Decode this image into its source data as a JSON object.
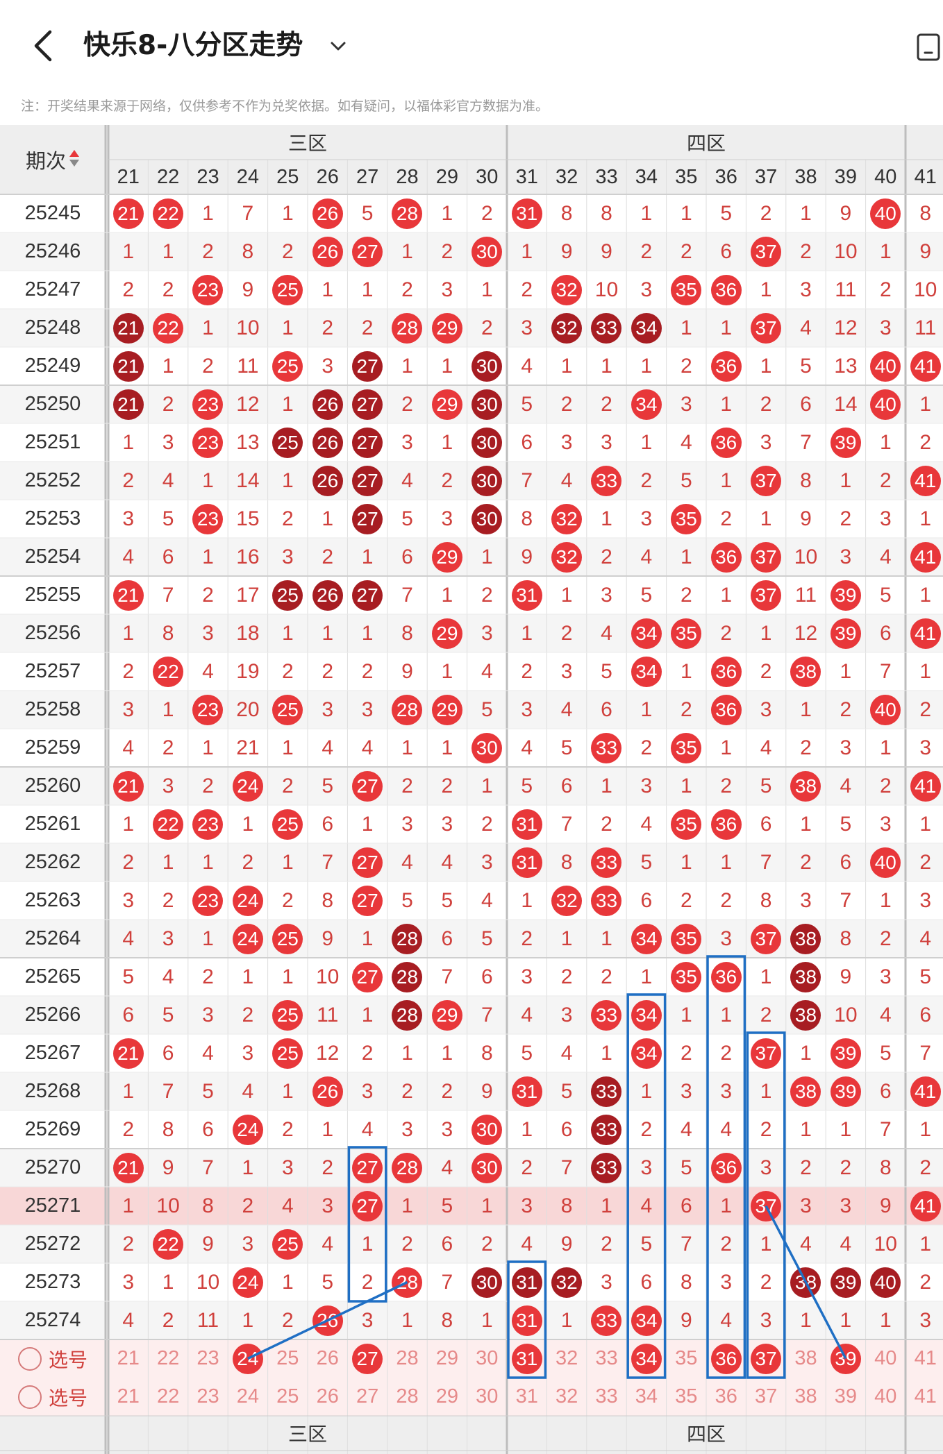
{
  "header": {
    "title": "快乐8-八分区走势",
    "back_icon": "chevron-left-icon",
    "caret_icon": "chevron-down-icon",
    "right_icon": "phone-icon"
  },
  "disclaimer": "注：开奖结果来源于网络，仅供参考不作为兑奖依据。如有疑问，以福体彩官方数据为准。",
  "table": {
    "period_header": "期次",
    "sort_icon": "sort-icon",
    "zones": [
      {
        "label": "三区"
      },
      {
        "label": "四区"
      }
    ],
    "columns": [
      "21",
      "22",
      "23",
      "24",
      "25",
      "26",
      "27",
      "28",
      "29",
      "30",
      "31",
      "32",
      "33",
      "34",
      "35",
      "36",
      "37",
      "38",
      "39",
      "40",
      "41"
    ],
    "rows": [
      {
        "period": "25245",
        "cells": [
          "B21",
          "B22",
          "1",
          "7",
          "1",
          "B26",
          "5",
          "B28",
          "1",
          "2",
          "B31",
          "8",
          "8",
          "1",
          "1",
          "5",
          "2",
          "1",
          "9",
          "B40",
          "8"
        ]
      },
      {
        "period": "25246",
        "cells": [
          "1",
          "1",
          "2",
          "8",
          "2",
          "B26",
          "B27",
          "1",
          "2",
          "B30",
          "1",
          "9",
          "9",
          "2",
          "2",
          "6",
          "B37",
          "2",
          "10",
          "1",
          "9"
        ]
      },
      {
        "period": "25247",
        "cells": [
          "2",
          "2",
          "B23",
          "9",
          "B25",
          "1",
          "1",
          "2",
          "3",
          "1",
          "2",
          "B32",
          "10",
          "3",
          "B35",
          "B36",
          "1",
          "3",
          "11",
          "2",
          "10"
        ]
      },
      {
        "period": "25248",
        "cells": [
          "D21",
          "B22",
          "1",
          "10",
          "1",
          "2",
          "2",
          "B28",
          "B29",
          "2",
          "3",
          "D32",
          "D33",
          "D34",
          "1",
          "1",
          "B37",
          "4",
          "12",
          "3",
          "11"
        ]
      },
      {
        "period": "25249",
        "cells": [
          "D21",
          "1",
          "2",
          "11",
          "B25",
          "3",
          "D27",
          "1",
          "1",
          "D30",
          "4",
          "1",
          "1",
          "1",
          "2",
          "B36",
          "1",
          "5",
          "13",
          "B40",
          "B41"
        ]
      },
      {
        "period": "25250",
        "cells": [
          "D21",
          "2",
          "B23",
          "12",
          "1",
          "D26",
          "D27",
          "2",
          "B29",
          "D30",
          "5",
          "2",
          "2",
          "B34",
          "3",
          "1",
          "2",
          "6",
          "14",
          "B40",
          "1"
        ]
      },
      {
        "period": "25251",
        "cells": [
          "1",
          "3",
          "B23",
          "13",
          "D25",
          "D26",
          "D27",
          "3",
          "1",
          "D30",
          "6",
          "3",
          "3",
          "1",
          "4",
          "B36",
          "3",
          "7",
          "B39",
          "1",
          "2"
        ]
      },
      {
        "period": "25252",
        "cells": [
          "2",
          "4",
          "1",
          "14",
          "1",
          "D26",
          "D27",
          "4",
          "2",
          "D30",
          "7",
          "4",
          "B33",
          "2",
          "5",
          "1",
          "B37",
          "8",
          "1",
          "2",
          "B41"
        ]
      },
      {
        "period": "25253",
        "cells": [
          "3",
          "5",
          "B23",
          "15",
          "2",
          "1",
          "D27",
          "5",
          "3",
          "D30",
          "8",
          "B32",
          "1",
          "3",
          "B35",
          "2",
          "1",
          "9",
          "2",
          "3",
          "1"
        ]
      },
      {
        "period": "25254",
        "cells": [
          "4",
          "6",
          "1",
          "16",
          "3",
          "2",
          "1",
          "6",
          "B29",
          "1",
          "9",
          "B32",
          "2",
          "4",
          "1",
          "B36",
          "B37",
          "10",
          "3",
          "4",
          "B41"
        ]
      },
      {
        "period": "25255",
        "cells": [
          "B21",
          "7",
          "2",
          "17",
          "D25",
          "D26",
          "D27",
          "7",
          "1",
          "2",
          "B31",
          "1",
          "3",
          "5",
          "2",
          "1",
          "B37",
          "11",
          "B39",
          "5",
          "1"
        ]
      },
      {
        "period": "25256",
        "cells": [
          "1",
          "8",
          "3",
          "18",
          "1",
          "1",
          "1",
          "8",
          "B29",
          "3",
          "1",
          "2",
          "4",
          "B34",
          "B35",
          "2",
          "1",
          "12",
          "B39",
          "6",
          "B41"
        ]
      },
      {
        "period": "25257",
        "cells": [
          "2",
          "B22",
          "4",
          "19",
          "2",
          "2",
          "2",
          "9",
          "1",
          "4",
          "2",
          "3",
          "5",
          "B34",
          "1",
          "B36",
          "2",
          "B38",
          "1",
          "7",
          "1"
        ]
      },
      {
        "period": "25258",
        "cells": [
          "3",
          "1",
          "B23",
          "20",
          "B25",
          "3",
          "3",
          "B28",
          "B29",
          "5",
          "3",
          "4",
          "6",
          "1",
          "2",
          "B36",
          "3",
          "1",
          "2",
          "B40",
          "2"
        ]
      },
      {
        "period": "25259",
        "cells": [
          "4",
          "2",
          "1",
          "21",
          "1",
          "4",
          "4",
          "1",
          "1",
          "B30",
          "4",
          "5",
          "B33",
          "2",
          "B35",
          "1",
          "4",
          "2",
          "3",
          "1",
          "3"
        ]
      },
      {
        "period": "25260",
        "cells": [
          "B21",
          "3",
          "2",
          "B24",
          "2",
          "5",
          "B27",
          "2",
          "2",
          "1",
          "5",
          "6",
          "1",
          "3",
          "1",
          "2",
          "5",
          "B38",
          "4",
          "2",
          "B41"
        ]
      },
      {
        "period": "25261",
        "cells": [
          "1",
          "B22",
          "B23",
          "1",
          "B25",
          "6",
          "1",
          "3",
          "3",
          "2",
          "B31",
          "7",
          "2",
          "4",
          "B35",
          "B36",
          "6",
          "1",
          "5",
          "3",
          "1"
        ]
      },
      {
        "period": "25262",
        "cells": [
          "2",
          "1",
          "1",
          "2",
          "1",
          "7",
          "B27",
          "4",
          "4",
          "3",
          "B31",
          "8",
          "B33",
          "5",
          "1",
          "1",
          "7",
          "2",
          "6",
          "B40",
          "2"
        ]
      },
      {
        "period": "25263",
        "cells": [
          "3",
          "2",
          "B23",
          "B24",
          "2",
          "8",
          "B27",
          "5",
          "5",
          "4",
          "1",
          "B32",
          "B33",
          "6",
          "2",
          "2",
          "8",
          "3",
          "7",
          "1",
          "3"
        ]
      },
      {
        "period": "25264",
        "cells": [
          "4",
          "3",
          "1",
          "B24",
          "B25",
          "9",
          "1",
          "D28",
          "6",
          "5",
          "2",
          "1",
          "1",
          "B34",
          "B35",
          "3",
          "B37",
          "D38",
          "8",
          "2",
          "4"
        ]
      },
      {
        "period": "25265",
        "cells": [
          "5",
          "4",
          "2",
          "1",
          "1",
          "10",
          "B27",
          "D28",
          "7",
          "6",
          "3",
          "2",
          "2",
          "1",
          "B35",
          "B36",
          "1",
          "D38",
          "9",
          "3",
          "5"
        ]
      },
      {
        "period": "25266",
        "cells": [
          "6",
          "5",
          "3",
          "2",
          "B25",
          "11",
          "1",
          "D28",
          "B29",
          "7",
          "4",
          "3",
          "B33",
          "B34",
          "1",
          "1",
          "2",
          "D38",
          "10",
          "4",
          "6"
        ]
      },
      {
        "period": "25267",
        "cells": [
          "B21",
          "6",
          "4",
          "3",
          "B25",
          "12",
          "2",
          "1",
          "1",
          "8",
          "5",
          "4",
          "1",
          "B34",
          "2",
          "2",
          "B37",
          "1",
          "B39",
          "5",
          "7"
        ]
      },
      {
        "period": "25268",
        "cells": [
          "1",
          "7",
          "5",
          "4",
          "1",
          "B26",
          "3",
          "2",
          "2",
          "9",
          "B31",
          "5",
          "D33",
          "1",
          "3",
          "3",
          "1",
          "B38",
          "B39",
          "6",
          "B41"
        ]
      },
      {
        "period": "25269",
        "cells": [
          "2",
          "8",
          "6",
          "B24",
          "2",
          "1",
          "4",
          "3",
          "3",
          "B30",
          "1",
          "6",
          "D33",
          "2",
          "4",
          "4",
          "2",
          "1",
          "1",
          "7",
          "1"
        ]
      },
      {
        "period": "25270",
        "cells": [
          "B21",
          "9",
          "7",
          "1",
          "3",
          "2",
          "B27",
          "B28",
          "4",
          "B30",
          "2",
          "7",
          "D33",
          "3",
          "5",
          "B36",
          "3",
          "2",
          "2",
          "8",
          "2"
        ]
      },
      {
        "period": "25271",
        "cells": [
          "1",
          "10",
          "8",
          "2",
          "4",
          "3",
          "B27",
          "1",
          "5",
          "1",
          "3",
          "8",
          "1",
          "4",
          "6",
          "1",
          "B37",
          "3",
          "3",
          "9",
          "B41"
        ]
      },
      {
        "period": "25272",
        "cells": [
          "2",
          "B22",
          "9",
          "3",
          "B25",
          "4",
          "1",
          "2",
          "6",
          "2",
          "4",
          "9",
          "2",
          "5",
          "7",
          "2",
          "1",
          "4",
          "4",
          "10",
          "1"
        ]
      },
      {
        "period": "25273",
        "cells": [
          "3",
          "1",
          "10",
          "B24",
          "1",
          "5",
          "2",
          "B28",
          "7",
          "D30",
          "D31",
          "D32",
          "3",
          "6",
          "8",
          "3",
          "2",
          "D38",
          "D39",
          "D40",
          "2"
        ]
      },
      {
        "period": "25274",
        "cells": [
          "4",
          "2",
          "11",
          "1",
          "2",
          "B26",
          "3",
          "1",
          "8",
          "1",
          "B31",
          "1",
          "B33",
          "B34",
          "9",
          "4",
          "3",
          "1",
          "1",
          "1",
          "3"
        ]
      }
    ],
    "pick_rows": [
      {
        "label": "选号",
        "selected": [
          "24",
          "27",
          "31",
          "34",
          "36",
          "37",
          "39"
        ]
      },
      {
        "label": "选号",
        "selected": []
      }
    ],
    "footer_zones": [
      "三区",
      "四区"
    ],
    "colors": {
      "ball_red": "#e8373a",
      "ball_dark": "#a71d22",
      "highlight_row": "#f8d7d7",
      "pick_row": "#fdeeee",
      "box_blue": "#1f6fc4"
    }
  }
}
